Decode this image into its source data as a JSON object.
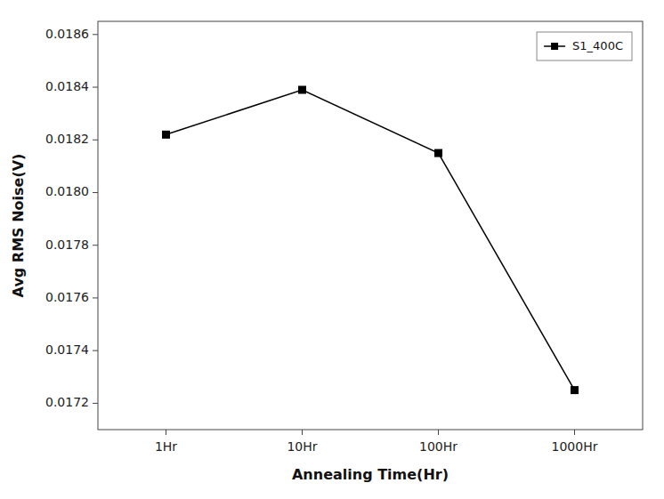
{
  "chart_data": {
    "type": "line",
    "categories": [
      "1Hr",
      "10Hr",
      "100Hr",
      "1000Hr"
    ],
    "series": [
      {
        "name": "S1_400C",
        "color": "black",
        "marker": "square",
        "values": [
          0.01822,
          0.01839,
          0.01815,
          0.01725
        ]
      }
    ],
    "xlabel": "Annealing Time(Hr)",
    "ylabel": "Avg RMS Noise(V)",
    "ylim": [
      0.0171,
      0.01865
    ],
    "yticks": [
      0.0172,
      0.0174,
      0.0176,
      0.0178,
      {
        "value": 0.018,
        "label": "0.0180"
      },
      0.0182,
      0.0184,
      0.0186
    ],
    "grid": false,
    "legend": "upper right"
  }
}
